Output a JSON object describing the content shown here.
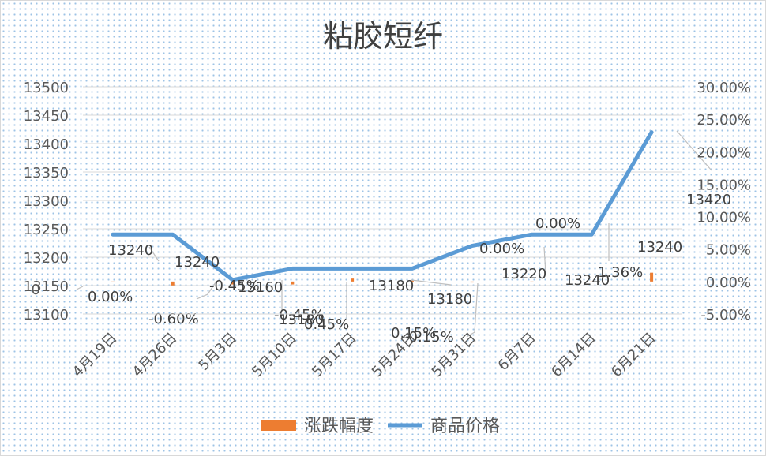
{
  "chart_data": {
    "type": "bar+line",
    "title": "粘胶短纤",
    "categories": [
      "4月19日",
      "4月26日",
      "5月3日",
      "5月10日",
      "5月17日",
      "5月24日",
      "5月31日",
      "6月7日",
      "6月14日",
      "6月21日"
    ],
    "series": [
      {
        "name": "涨跌幅度",
        "type": "bar",
        "axis": "right",
        "color": "#ED7D31",
        "values": [
          0.0,
          -0.6,
          -0.45,
          -0.45,
          0.45,
          0.15,
          -0.15,
          0.0,
          0.0,
          1.36
        ],
        "labels": [
          "0.00%",
          "-0.60%",
          "-0.45%",
          "-0.45%",
          "0.45%",
          "0.15%",
          "-0.15%",
          "0.00%",
          "0.00%",
          "1.36%"
        ]
      },
      {
        "name": "商品价格",
        "type": "line",
        "axis": "left",
        "color": "#5B9BD5",
        "values": [
          13240,
          13240,
          13160,
          13180,
          13180,
          13180,
          13220,
          13240,
          13240,
          13420
        ],
        "labels": [
          "13240",
          "13240",
          "13160",
          "13180",
          "13180",
          "13180",
          "13220",
          "13240",
          "13240",
          "13420"
        ]
      }
    ],
    "y_left": {
      "ylim": [
        13100,
        13500
      ],
      "ticks": [
        "13500",
        "13450",
        "13400",
        "13350",
        "13300",
        "13250",
        "13200",
        "13150",
        "13100"
      ],
      "values": [
        13500,
        13450,
        13400,
        13350,
        13300,
        13250,
        13200,
        13150,
        13100
      ],
      "extra_label": "0"
    },
    "y_right": {
      "ylim": [
        -5,
        30
      ],
      "ticks": [
        "30.00%",
        "25.00%",
        "20.00%",
        "15.00%",
        "10.00%",
        "5.00%",
        "0.00%",
        "-5.00%"
      ],
      "values": [
        30,
        25,
        20,
        15,
        10,
        5,
        0,
        -5
      ]
    },
    "grid": true,
    "legend_position": "bottom"
  }
}
